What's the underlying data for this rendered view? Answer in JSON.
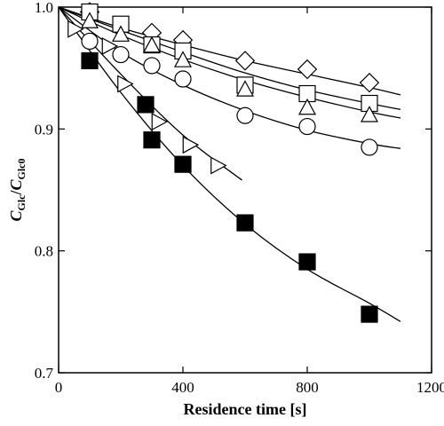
{
  "chart_data": {
    "type": "scatter",
    "xlabel": "Residence time [s]",
    "ylabel": {
      "numerator": [
        "C",
        "Glc"
      ],
      "separator": "/",
      "denominator": [
        "C",
        "Glc0"
      ]
    },
    "xlim": [
      0,
      1200
    ],
    "xticks": [
      0,
      400,
      800,
      1200
    ],
    "ylim": [
      0.7,
      1.0
    ],
    "yticks": [
      0.7,
      0.8,
      0.9,
      {
        "value": 1.0,
        "label": "1.0"
      }
    ],
    "series": [
      {
        "marker": "diamond",
        "filled": false,
        "color": "#000000",
        "x": [
          100,
          300,
          400,
          600,
          800,
          1000
        ],
        "values": [
          0.996,
          0.979,
          0.973,
          0.956,
          0.949,
          0.938
        ]
      },
      {
        "marker": "square",
        "filled": false,
        "color": "#000000",
        "x": [
          100,
          200,
          300,
          400,
          600,
          800,
          1000
        ],
        "values": [
          0.996,
          0.986,
          0.969,
          0.964,
          0.936,
          0.929,
          0.921
        ]
      },
      {
        "marker": "triangle",
        "filled": false,
        "color": "#000000",
        "x": [
          100,
          200,
          300,
          400,
          600,
          800,
          1000
        ],
        "values": [
          0.988,
          0.977,
          0.968,
          0.956,
          0.932,
          0.917,
          0.911
        ]
      },
      {
        "marker": "circle",
        "filled": false,
        "color": "#000000",
        "x": [
          100,
          200,
          300,
          400,
          600,
          800,
          1000
        ],
        "values": [
          0.972,
          0.961,
          0.952,
          0.941,
          0.911,
          0.902,
          0.885
        ]
      },
      {
        "marker": "right-triangle",
        "filled": false,
        "color": "#000000",
        "x": [
          50,
          160,
          210,
          320,
          420,
          510
        ],
        "values": [
          0.982,
          0.968,
          0.937,
          0.906,
          0.887,
          0.87
        ]
      },
      {
        "marker": "square",
        "filled": true,
        "color": "#000000",
        "x": [
          100,
          280,
          300,
          400,
          600,
          800,
          1000
        ],
        "values": [
          0.956,
          0.92,
          0.891,
          0.871,
          0.823,
          0.791,
          0.748
        ]
      }
    ],
    "curves": [
      {
        "x": [
          0,
          200,
          400,
          600,
          800,
          1000,
          1100
        ],
        "values": [
          1.0,
          0.983,
          0.969,
          0.956,
          0.945,
          0.934,
          0.928
        ]
      },
      {
        "x": [
          0,
          200,
          400,
          600,
          800,
          1000,
          1100
        ],
        "values": [
          1.0,
          0.981,
          0.963,
          0.946,
          0.932,
          0.921,
          0.916
        ]
      },
      {
        "x": [
          0,
          200,
          400,
          600,
          800,
          1000,
          1100
        ],
        "values": [
          1.0,
          0.977,
          0.957,
          0.94,
          0.926,
          0.914,
          0.909
        ]
      },
      {
        "x": [
          0,
          200,
          400,
          600,
          800,
          1000,
          1100
        ],
        "values": [
          1.0,
          0.963,
          0.936,
          0.915,
          0.899,
          0.888,
          0.884
        ]
      },
      {
        "x": [
          0,
          200,
          400,
          590
        ],
        "values": [
          1.0,
          0.945,
          0.895,
          0.858
        ]
      },
      {
        "x": [
          0,
          200,
          400,
          600,
          800,
          1000,
          1100
        ],
        "values": [
          1.0,
          0.93,
          0.87,
          0.822,
          0.785,
          0.757,
          0.742
        ]
      }
    ]
  }
}
